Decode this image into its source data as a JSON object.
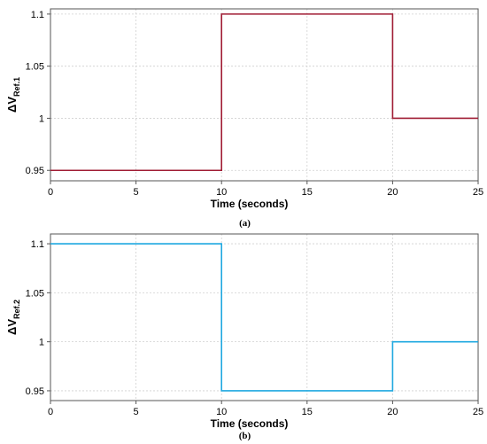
{
  "chart_data": [
    {
      "type": "line",
      "caption": "(a)",
      "ylabel": {
        "main": "ΔV",
        "sub": "Ref.1"
      },
      "xlabel": "Time (seconds)",
      "xlim": [
        0,
        25
      ],
      "ylim": [
        0.94,
        1.105
      ],
      "xticks": [
        0,
        5,
        10,
        15,
        20,
        25
      ],
      "yticks": [
        0.95,
        1,
        1.05,
        1.1
      ],
      "ytick_labels": [
        "0.95",
        "1",
        "1.05",
        "1.1"
      ],
      "grid": true,
      "series": [
        {
          "color": "#a01c34",
          "step": true,
          "x": [
            0,
            10,
            10,
            20,
            20,
            25
          ],
          "y": [
            0.95,
            0.95,
            1.1,
            1.1,
            1.0,
            1.0
          ]
        }
      ]
    },
    {
      "type": "line",
      "caption": "(b)",
      "ylabel": {
        "main": "ΔV",
        "sub": "Ref.2"
      },
      "xlabel": "Time (seconds)",
      "xlim": [
        0,
        25
      ],
      "ylim": [
        0.94,
        1.11
      ],
      "xticks": [
        0,
        5,
        10,
        15,
        20,
        25
      ],
      "yticks": [
        0.95,
        1,
        1.05,
        1.1
      ],
      "ytick_labels": [
        "0.95",
        "1",
        "1.05",
        "1.1"
      ],
      "grid": true,
      "series": [
        {
          "color": "#1fa8e0",
          "step": true,
          "x": [
            0,
            10,
            10,
            20,
            20,
            25
          ],
          "y": [
            1.1,
            1.1,
            0.95,
            0.95,
            1.0,
            1.0
          ]
        }
      ]
    }
  ]
}
